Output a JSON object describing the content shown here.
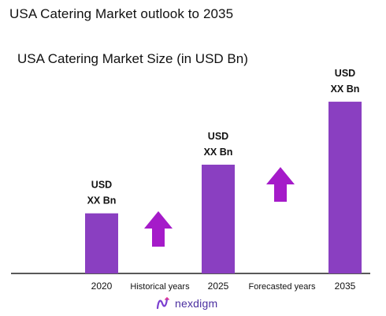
{
  "title": "USA Catering Market outlook to 2035",
  "chart_data": {
    "type": "bar",
    "title": "USA Catering Market Size (in USD Bn)",
    "categories": [
      "2020",
      "2025",
      "2035"
    ],
    "values": [
      2.1,
      3.8,
      6.0
    ],
    "data_labels": [
      "USD\nXX Bn",
      "USD\nXX Bn",
      "USD\nXX Bn"
    ],
    "ylim": [
      0,
      6.8
    ],
    "bar_color": "#8a3fc1",
    "annotations": [
      "Historical years",
      "Forecasted years"
    ],
    "arrow_colors": [
      "#a51bc9",
      "#a51bc9"
    ],
    "grid": false,
    "legend": "none"
  },
  "logo": {
    "text": "nexdigm",
    "color": "#4b2fa0"
  }
}
